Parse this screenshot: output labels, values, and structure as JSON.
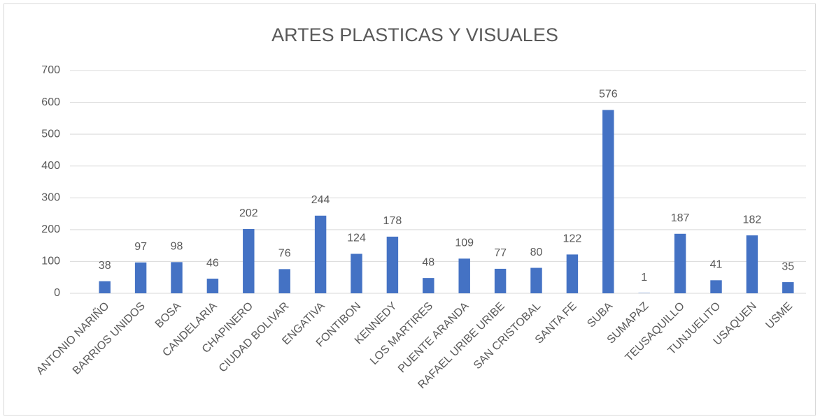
{
  "chart_data": {
    "type": "bar",
    "title": "ARTES PLASTICAS Y VISUALES",
    "categories": [
      "ANTONIO NARIÑO",
      "BARRIOS UNIDOS",
      "BOSA",
      "CANDELARIA",
      "CHAPINERO",
      "CIUDAD BOLIVAR",
      "ENGATIVA",
      "FONTIBON",
      "KENNEDY",
      "LOS MARTIRES",
      "PUENTE ARANDA",
      "RAFAEL URIBE URIBE",
      "SAN CRISTOBAL",
      "SANTA FE",
      "SUBA",
      "SUMAPAZ",
      "TEUSAQUILLO",
      "TUNJUELITO",
      "USAQUEN",
      "USME"
    ],
    "values": [
      38,
      97,
      98,
      46,
      202,
      76,
      244,
      124,
      178,
      48,
      109,
      77,
      80,
      122,
      576,
      1,
      187,
      41,
      182,
      35
    ],
    "color": "#4472c4",
    "ylim": [
      0,
      700
    ],
    "yticks": [
      0,
      100,
      200,
      300,
      400,
      500,
      600,
      700
    ],
    "grid": true
  }
}
